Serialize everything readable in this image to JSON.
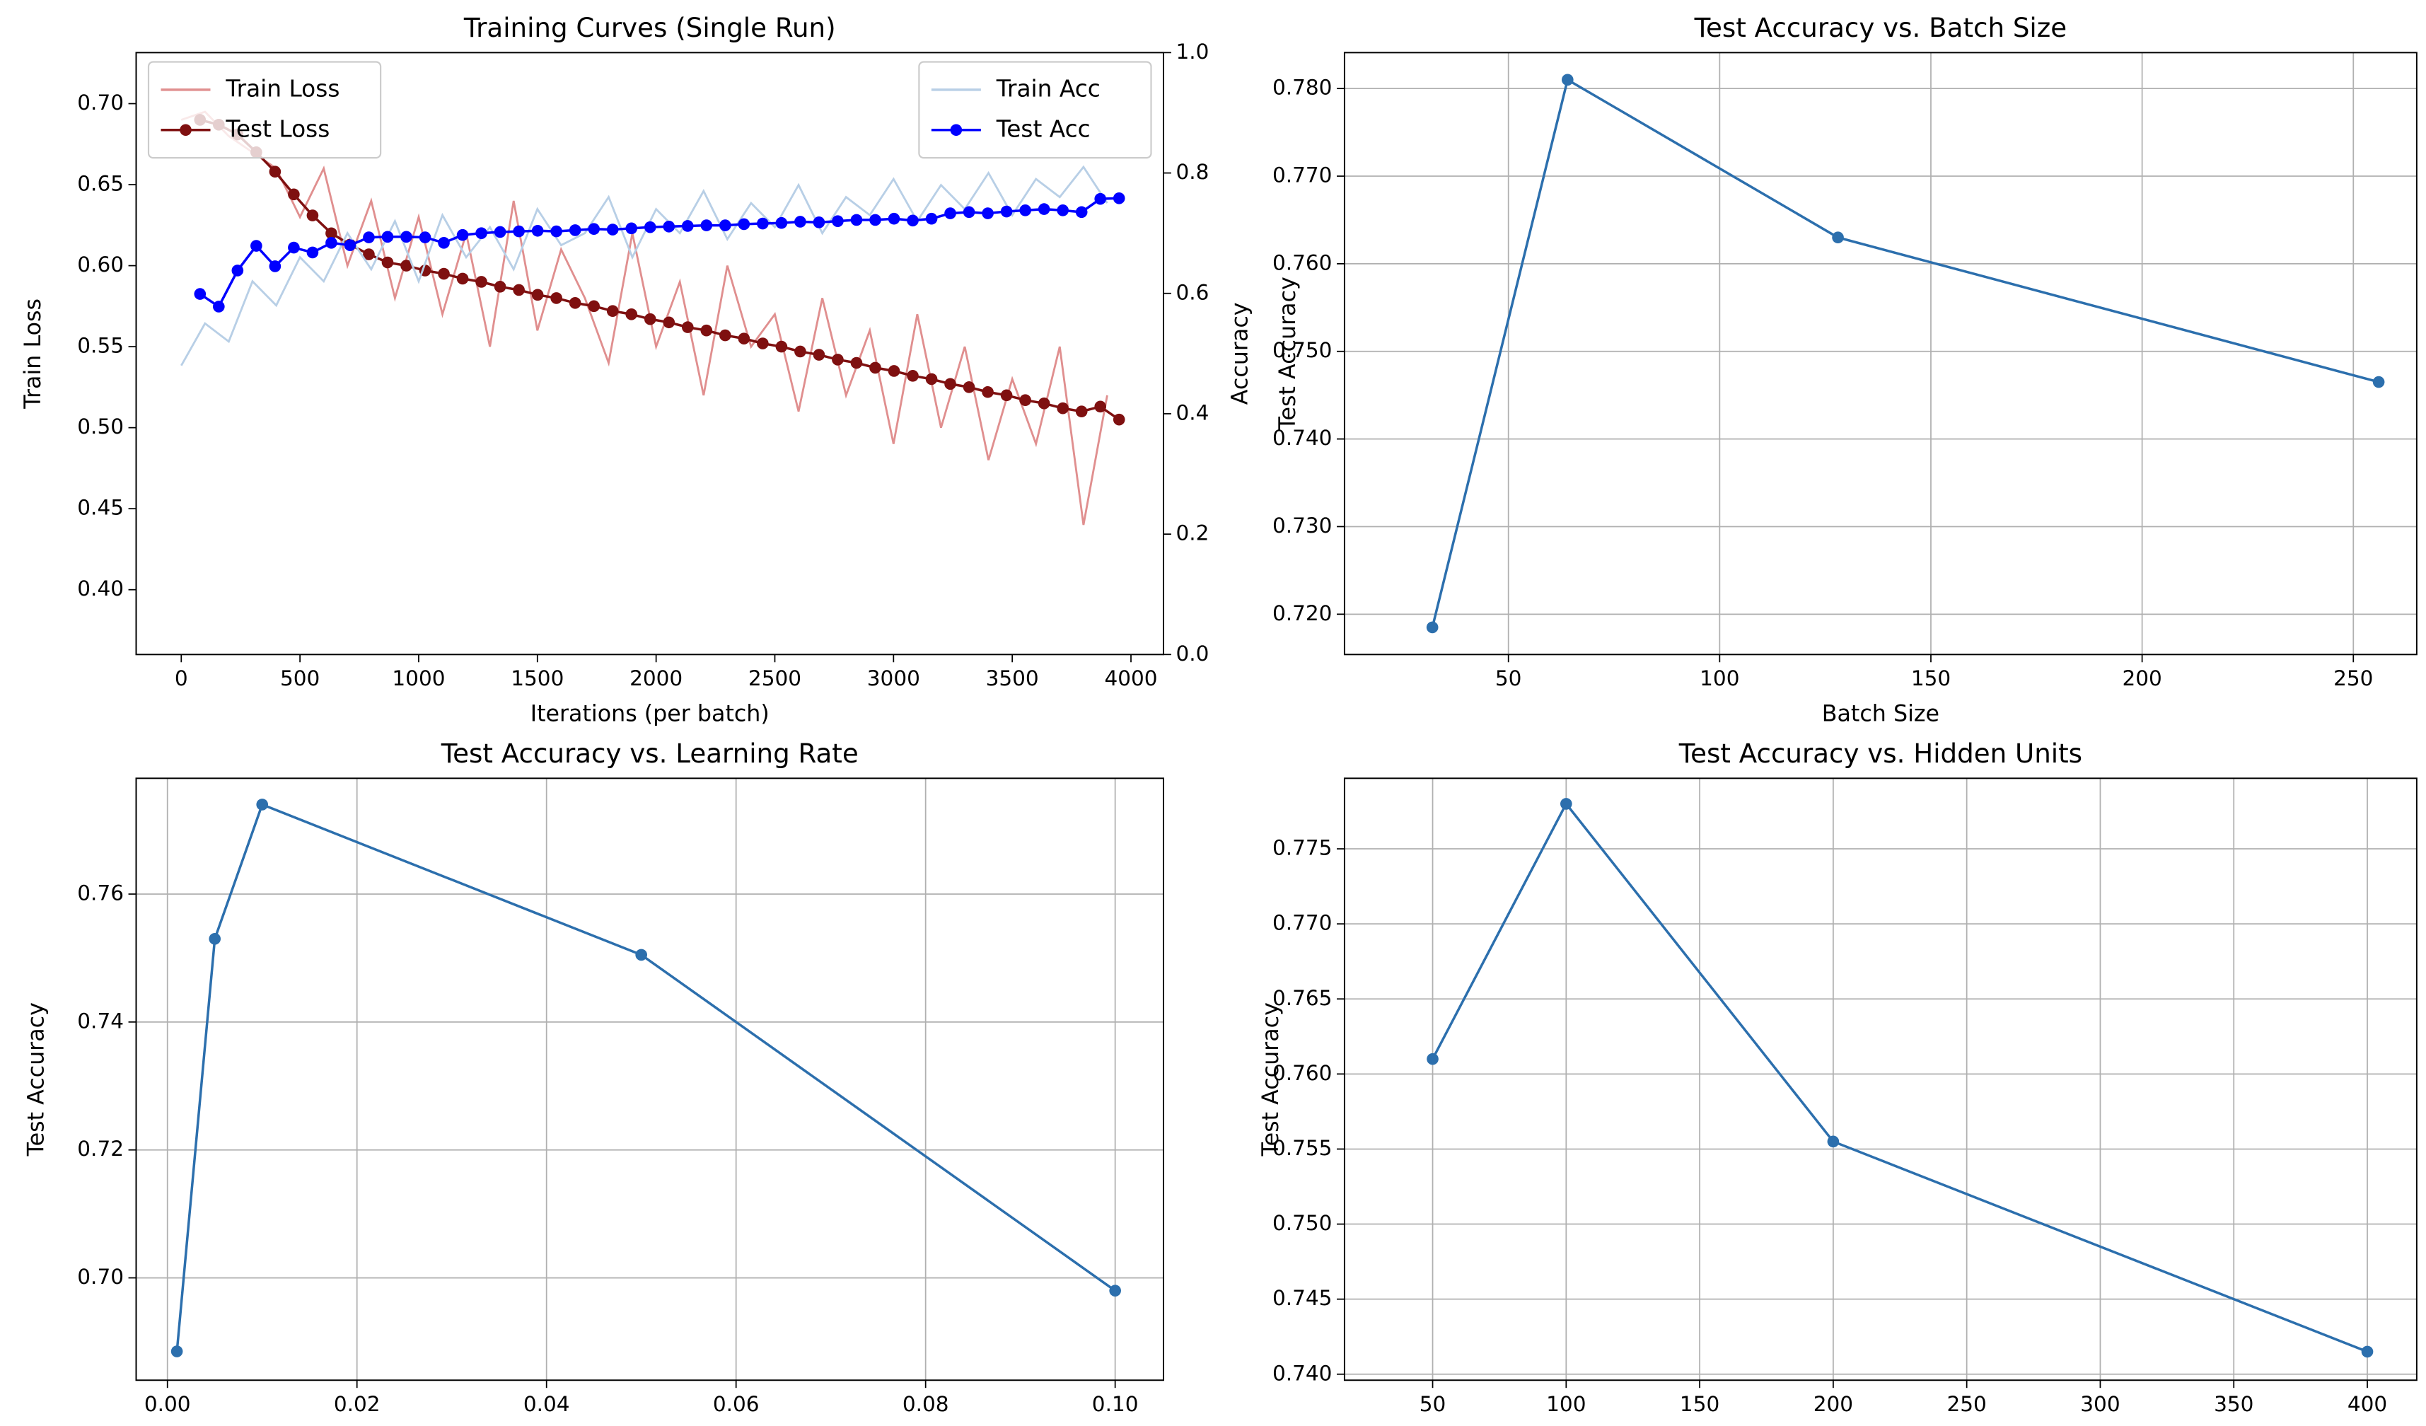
{
  "chart_data": [
    {
      "type": "line",
      "title": "Training Curves (Single Run)",
      "xlabel": "Iterations (per batch)",
      "ylabel": "Train Loss",
      "y2label": "Accuracy",
      "ylabel_color": "#d62728",
      "y2label_color": "#1f77b4",
      "grid": false,
      "legend": "upper left",
      "legend2": "upper right",
      "xlim": [
        -190,
        4137
      ],
      "xticks": [
        0,
        500,
        1000,
        1500,
        2000,
        2500,
        3000,
        3500,
        4000
      ],
      "ylim": [
        0.36,
        0.7315
      ],
      "yticks": [
        {
          "value": 0.4,
          "label": "0.40"
        },
        0.45,
        {
          "value": 0.5,
          "label": "0.50"
        },
        0.55,
        {
          "value": 0.6,
          "label": "0.60"
        },
        0.65,
        {
          "value": 0.7,
          "label": "0.70"
        }
      ],
      "y2lim": [
        0,
        1
      ],
      "y2ticks": [
        {
          "value": 0,
          "label": "0.0"
        },
        0.2,
        0.4,
        0.6,
        0.8,
        {
          "value": 1,
          "label": "1.0"
        }
      ],
      "series": [
        {
          "name": "Train Loss",
          "color": "#e08f8f",
          "marker": false,
          "x": [
            0,
            100,
            200,
            300,
            400,
            500,
            600,
            700,
            800,
            900,
            1000,
            1100,
            1200,
            1300,
            1400,
            1500,
            1600,
            1700,
            1800,
            1900,
            2000,
            2100,
            2200,
            2300,
            2400,
            2500,
            2600,
            2700,
            2800,
            2900,
            3000,
            3100,
            3200,
            3300,
            3400,
            3500,
            3600,
            3700,
            3800,
            3900
          ],
          "values": [
            0.69,
            0.695,
            0.68,
            0.67,
            0.66,
            0.63,
            0.66,
            0.6,
            0.64,
            0.58,
            0.63,
            0.57,
            0.62,
            0.55,
            0.64,
            0.56,
            0.61,
            0.58,
            0.54,
            0.62,
            0.55,
            0.59,
            0.52,
            0.6,
            0.55,
            0.57,
            0.51,
            0.58,
            0.52,
            0.56,
            0.49,
            0.57,
            0.5,
            0.55,
            0.48,
            0.53,
            0.49,
            0.55,
            0.44,
            0.52
          ]
        },
        {
          "name": "Test Loss",
          "color": "#7f1010",
          "marker": true,
          "x": [
            79,
            158,
            237,
            316,
            395,
            474,
            553,
            632,
            711,
            790,
            869,
            948,
            1027,
            1106,
            1185,
            1264,
            1343,
            1422,
            1501,
            1580,
            1659,
            1738,
            1817,
            1896,
            1975,
            2054,
            2133,
            2212,
            2291,
            2370,
            2449,
            2528,
            2607,
            2686,
            2765,
            2844,
            2923,
            3002,
            3081,
            3160,
            3239,
            3318,
            3397,
            3476,
            3555,
            3634,
            3713,
            3792,
            3871,
            3950
          ],
          "values": [
            0.69,
            0.687,
            0.681,
            0.67,
            0.658,
            0.644,
            0.631,
            0.62,
            0.613,
            0.607,
            0.602,
            0.6,
            0.597,
            0.595,
            0.592,
            0.59,
            0.587,
            0.585,
            0.582,
            0.58,
            0.577,
            0.575,
            0.572,
            0.57,
            0.567,
            0.565,
            0.562,
            0.56,
            0.557,
            0.555,
            0.552,
            0.55,
            0.547,
            0.545,
            0.542,
            0.54,
            0.537,
            0.535,
            0.532,
            0.53,
            0.527,
            0.525,
            0.522,
            0.52,
            0.517,
            0.515,
            0.512,
            0.51,
            0.513,
            0.505
          ]
        },
        {
          "name": "Train Acc",
          "color": "#b8cfe6",
          "marker": false,
          "axis": "y2",
          "x": [
            0,
            100,
            200,
            300,
            400,
            500,
            600,
            700,
            800,
            900,
            1000,
            1100,
            1200,
            1300,
            1400,
            1500,
            1600,
            1700,
            1800,
            1900,
            2000,
            2100,
            2200,
            2300,
            2400,
            2500,
            2600,
            2700,
            2800,
            2900,
            3000,
            3100,
            3200,
            3300,
            3400,
            3500,
            3600,
            3700,
            3800,
            3900
          ],
          "values": [
            0.48,
            0.55,
            0.52,
            0.62,
            0.58,
            0.66,
            0.62,
            0.7,
            0.64,
            0.72,
            0.62,
            0.73,
            0.66,
            0.71,
            0.64,
            0.74,
            0.68,
            0.7,
            0.76,
            0.66,
            0.74,
            0.7,
            0.77,
            0.69,
            0.75,
            0.71,
            0.78,
            0.7,
            0.76,
            0.73,
            0.79,
            0.72,
            0.78,
            0.74,
            0.8,
            0.73,
            0.79,
            0.76,
            0.81,
            0.75
          ]
        },
        {
          "name": "Test Acc",
          "color": "#0000ff",
          "marker": true,
          "axis": "y2",
          "x": [
            79,
            158,
            237,
            316,
            395,
            474,
            553,
            632,
            711,
            790,
            869,
            948,
            1027,
            1106,
            1185,
            1264,
            1343,
            1422,
            1501,
            1580,
            1659,
            1738,
            1817,
            1896,
            1975,
            2054,
            2133,
            2212,
            2291,
            2370,
            2449,
            2528,
            2607,
            2686,
            2765,
            2844,
            2923,
            3002,
            3081,
            3160,
            3239,
            3318,
            3397,
            3476,
            3555,
            3634,
            3713,
            3792,
            3871,
            3950
          ],
          "values": [
            0.599,
            0.578,
            0.638,
            0.679,
            0.645,
            0.676,
            0.668,
            0.684,
            0.68,
            0.693,
            0.694,
            0.694,
            0.693,
            0.684,
            0.697,
            0.7,
            0.702,
            0.703,
            0.704,
            0.703,
            0.705,
            0.707,
            0.706,
            0.708,
            0.71,
            0.711,
            0.712,
            0.713,
            0.713,
            0.715,
            0.716,
            0.717,
            0.719,
            0.718,
            0.72,
            0.722,
            0.722,
            0.724,
            0.721,
            0.724,
            0.733,
            0.735,
            0.733,
            0.736,
            0.738,
            0.74,
            0.738,
            0.735,
            0.757,
            0.758
          ]
        }
      ]
    },
    {
      "type": "line",
      "title": "Test Accuracy vs. Batch Size",
      "xlabel": "Batch Size",
      "ylabel": "Test Accuracy",
      "grid": true,
      "xlim": [
        11.2,
        265
      ],
      "xticks": [
        50,
        100,
        150,
        200,
        250
      ],
      "ylim": [
        0.7154,
        0.7841
      ],
      "yticks": [
        {
          "value": 0.72,
          "label": "0.720"
        },
        {
          "value": 0.73,
          "label": "0.730"
        },
        {
          "value": 0.74,
          "label": "0.740"
        },
        {
          "value": 0.75,
          "label": "0.750"
        },
        {
          "value": 0.76,
          "label": "0.760"
        },
        {
          "value": 0.77,
          "label": "0.770"
        },
        {
          "value": 0.78,
          "label": "0.780"
        }
      ],
      "series": [
        {
          "color": "#2c6fad",
          "marker": true,
          "x": [
            32,
            64,
            128,
            256
          ],
          "values": [
            0.7185,
            0.781,
            0.763,
            0.7465
          ]
        }
      ]
    },
    {
      "type": "line",
      "title": "Test Accuracy vs. Learning Rate",
      "ylabel": "Test Accuracy",
      "grid": true,
      "xlim": [
        -0.0033,
        0.1051
      ],
      "xticks": [
        {
          "value": 0,
          "label": "0.00"
        },
        0.02,
        0.04,
        0.06,
        0.08,
        {
          "value": 0.1,
          "label": "0.10"
        }
      ],
      "ylim": [
        0.684,
        0.7781
      ],
      "yticks": [
        {
          "value": 0.7,
          "label": "0.70"
        },
        0.72,
        0.74,
        0.76
      ],
      "series": [
        {
          "color": "#2c6fad",
          "marker": true,
          "x": [
            0.001,
            0.005,
            0.01,
            0.05,
            0.1
          ],
          "values": [
            0.6885,
            0.753,
            0.774,
            0.7505,
            0.698
          ]
        }
      ]
    },
    {
      "type": "line",
      "title": "Test Accuracy vs. Hidden Units",
      "ylabel": "Test Accuracy",
      "grid": true,
      "xlim": [
        17,
        418.5
      ],
      "xticks": [
        50,
        100,
        150,
        200,
        250,
        300,
        350,
        400
      ],
      "ylim": [
        0.7396,
        0.7797
      ],
      "yticks": [
        {
          "value": 0.74,
          "label": "0.740"
        },
        0.745,
        {
          "value": 0.75,
          "label": "0.750"
        },
        0.755,
        {
          "value": 0.76,
          "label": "0.760"
        },
        0.765,
        {
          "value": 0.77,
          "label": "0.770"
        },
        0.775
      ],
      "series": [
        {
          "color": "#2c6fad",
          "marker": true,
          "x": [
            50,
            100,
            200,
            400
          ],
          "values": [
            0.761,
            0.778,
            0.7555,
            0.7415
          ]
        }
      ]
    }
  ]
}
